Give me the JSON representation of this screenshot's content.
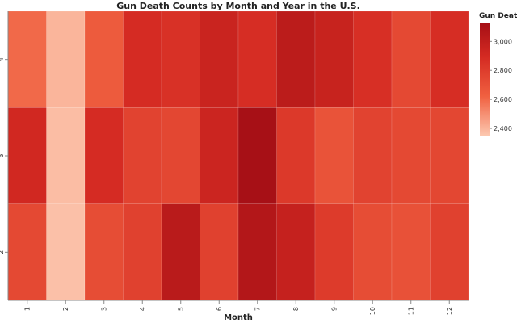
{
  "chart_data": {
    "type": "heatmap",
    "title": "Gun Death Counts by Month and Year in the U.S.",
    "xlabel": "Month",
    "ylabel": "",
    "x_categories": [
      "1",
      "2",
      "3",
      "4",
      "5",
      "6",
      "7",
      "8",
      "9",
      "10",
      "11",
      "12"
    ],
    "y_categories": [
      "4",
      "3",
      "2"
    ],
    "values": [
      [
        2600,
        2400,
        2650,
        2890,
        2860,
        2950,
        2880,
        3020,
        2960,
        2870,
        2740,
        2880
      ],
      [
        2910,
        2380,
        2890,
        2770,
        2750,
        2940,
        3120,
        2820,
        2690,
        2770,
        2740,
        2750
      ],
      [
        2740,
        2370,
        2720,
        2780,
        3030,
        2780,
        3060,
        2970,
        2810,
        2720,
        2700,
        2780
      ]
    ],
    "color_scale": {
      "domain": [
        2350,
        3130
      ],
      "range": [
        "#fcc8b0",
        "#a50f15"
      ]
    },
    "legend": {
      "title": "Gun Death Count",
      "ticks": [
        "2,400",
        "2,600",
        "2,800",
        "3,000"
      ],
      "tick_values": [
        2400,
        2600,
        2800,
        3000
      ],
      "placement": "right"
    }
  }
}
